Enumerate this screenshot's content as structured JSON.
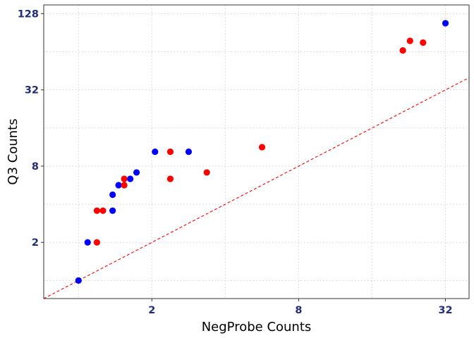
{
  "chart_data": {
    "type": "scatter",
    "title": "",
    "xlabel": "NegProbe Counts",
    "ylabel": "Q3 Counts",
    "x_scale": "log2",
    "y_scale": "log2",
    "xlim": [
      0.72,
      40
    ],
    "ylim": [
      0.72,
      150
    ],
    "x_ticks": [
      2,
      8,
      32
    ],
    "x_tick_labels": [
      "2",
      "8",
      "32"
    ],
    "y_ticks": [
      2,
      8,
      32,
      128
    ],
    "y_tick_labels": [
      "2",
      "8",
      "32",
      "128"
    ],
    "grid": true,
    "grid_style": "dotted",
    "legend": "none",
    "reference_line": {
      "type": "identity",
      "style": "dashed",
      "color": "#FF0000"
    },
    "colors": {
      "blue": "#0000FF",
      "red": "#FF0000",
      "tick_label": "#1F2D7A",
      "grid": "#D3D3D3"
    },
    "series": [
      {
        "color": "#0000FF",
        "points": [
          {
            "x": 1.0,
            "y": 1.0
          },
          {
            "x": 1.09,
            "y": 2.0
          },
          {
            "x": 1.38,
            "y": 3.56
          },
          {
            "x": 1.38,
            "y": 4.76
          },
          {
            "x": 1.46,
            "y": 5.66
          },
          {
            "x": 1.63,
            "y": 6.35
          },
          {
            "x": 1.73,
            "y": 7.13
          },
          {
            "x": 2.06,
            "y": 10.4
          },
          {
            "x": 2.83,
            "y": 10.4
          },
          {
            "x": 32.0,
            "y": 107.6
          }
        ]
      },
      {
        "color": "#FF0000",
        "points": [
          {
            "x": 1.19,
            "y": 2.0
          },
          {
            "x": 1.19,
            "y": 3.56
          },
          {
            "x": 1.26,
            "y": 3.56
          },
          {
            "x": 1.54,
            "y": 5.66
          },
          {
            "x": 1.54,
            "y": 6.35
          },
          {
            "x": 2.38,
            "y": 10.4
          },
          {
            "x": 2.38,
            "y": 6.35
          },
          {
            "x": 3.36,
            "y": 7.13
          },
          {
            "x": 5.66,
            "y": 11.3
          },
          {
            "x": 21.4,
            "y": 65.6
          },
          {
            "x": 22.9,
            "y": 78.1
          },
          {
            "x": 25.9,
            "y": 75.6
          }
        ]
      }
    ]
  }
}
